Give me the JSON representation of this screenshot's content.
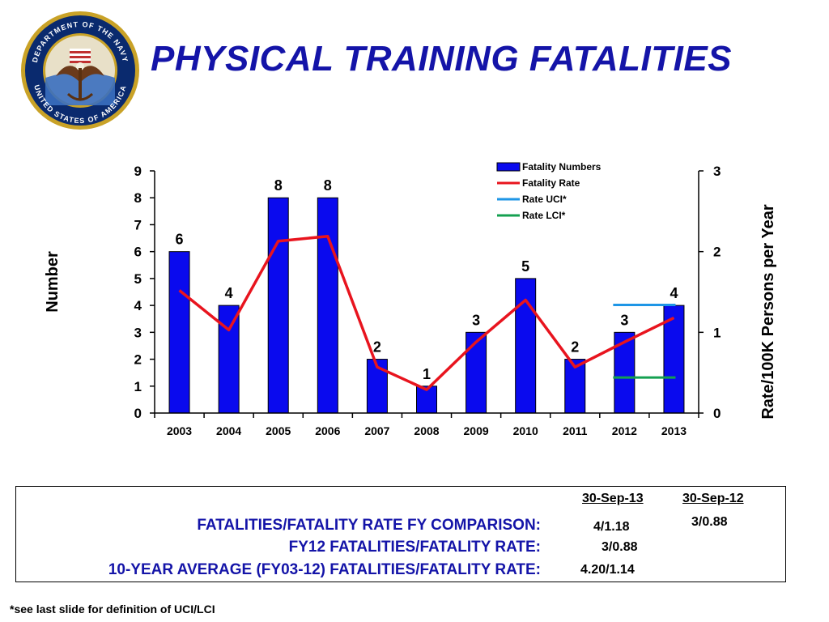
{
  "slide": {
    "title": "PHYSICAL TRAINING FATALITIES",
    "footnote": "*see last slide for definition of UCI/LCI",
    "seal": {
      "top_text": "DEPARTMENT OF THE NAVY",
      "bottom_text": "UNITED STATES OF AMERICA"
    }
  },
  "colors": {
    "title": "#1414a8",
    "bars": "#0a0aee",
    "rate_line": "#e8141e",
    "uci": "#1e96e6",
    "lci": "#14a050",
    "label_text": "#1414a8"
  },
  "chart_data": {
    "type": "bar",
    "categories": [
      "2003",
      "2004",
      "2005",
      "2006",
      "2007",
      "2008",
      "2009",
      "2010",
      "2011",
      "2012",
      "2013"
    ],
    "series": [
      {
        "name": "Fatality Numbers",
        "type": "bar",
        "axis": "left",
        "values": [
          6,
          4,
          8,
          8,
          2,
          1,
          3,
          5,
          2,
          3,
          4
        ]
      },
      {
        "name": "Fatality Rate",
        "type": "line",
        "axis": "right",
        "values": [
          1.52,
          1.03,
          2.13,
          2.19,
          0.57,
          0.29,
          0.88,
          1.4,
          0.57,
          0.88,
          1.18
        ]
      },
      {
        "name": "Rate UCI*",
        "type": "segment",
        "axis": "right",
        "x_range": [
          "2012",
          "2013"
        ],
        "value": 1.34
      },
      {
        "name": "Rate LCI*",
        "type": "segment",
        "axis": "right",
        "x_range": [
          "2012",
          "2013"
        ],
        "value": 0.44
      }
    ],
    "data_labels": [
      "6",
      "4",
      "8",
      "8",
      "2",
      "1",
      "3",
      "5",
      "2",
      "3",
      "4"
    ],
    "ylabel": "Number",
    "y2label": "Rate/100K Persons per Year",
    "ylim": [
      0,
      9
    ],
    "y2lim": [
      0,
      3
    ],
    "yticks": [
      "0",
      "1",
      "2",
      "3",
      "4",
      "5",
      "6",
      "7",
      "8",
      "9"
    ],
    "y2ticks": [
      "0",
      "1",
      "2",
      "3"
    ],
    "grid": false,
    "legend": "top-right"
  },
  "comparison": {
    "col1_header": "30-Sep-13",
    "col2_header": "30-Sep-12",
    "rows": [
      {
        "label": "FATALITIES/FATALITY RATE FY COMPARISON:",
        "col1": "4/1.18",
        "col2": "3/0.88"
      },
      {
        "label": "FY12 FATALITIES/FATALITY RATE:",
        "col1": "3/0.88"
      },
      {
        "label": "10-YEAR AVERAGE (FY03-12) FATALITIES/FATALITY RATE:",
        "col1": "4.20/1.14"
      }
    ]
  }
}
